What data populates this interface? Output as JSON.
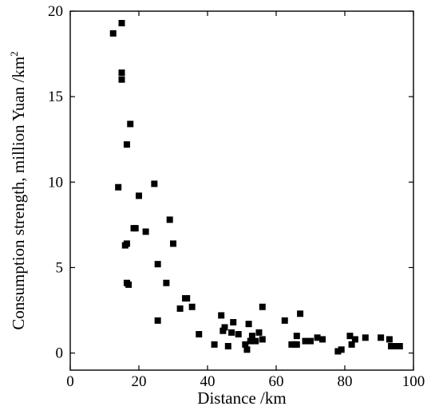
{
  "chart_data": {
    "type": "scatter",
    "xlabel": "Distance /km",
    "ylabel": "Consumption strength, million Yuan /km",
    "ylabel_superscript": "2",
    "xlim": [
      0,
      100
    ],
    "ylim": [
      -1,
      20
    ],
    "x_ticks": [
      0,
      20,
      40,
      60,
      80,
      100
    ],
    "y_ticks": [
      0,
      5,
      10,
      15,
      20
    ],
    "grid": false,
    "legend": "none",
    "marker": "square",
    "marker_color": "#000000",
    "points": [
      [
        12.5,
        18.7
      ],
      [
        15.0,
        19.3
      ],
      [
        15.0,
        16.4
      ],
      [
        15.0,
        16.0
      ],
      [
        17.5,
        13.4
      ],
      [
        16.5,
        12.2
      ],
      [
        14.0,
        9.7
      ],
      [
        24.5,
        9.9
      ],
      [
        20.0,
        9.2
      ],
      [
        29.0,
        7.8
      ],
      [
        18.5,
        7.3
      ],
      [
        19.0,
        7.3
      ],
      [
        22.0,
        7.1
      ],
      [
        30.0,
        6.4
      ],
      [
        16.5,
        6.4
      ],
      [
        16.0,
        6.3
      ],
      [
        25.5,
        5.2
      ],
      [
        28.0,
        4.1
      ],
      [
        16.5,
        4.1
      ],
      [
        17.0,
        4.0
      ],
      [
        33.5,
        3.2
      ],
      [
        34.0,
        3.2
      ],
      [
        35.5,
        2.7
      ],
      [
        32.0,
        2.6
      ],
      [
        56.0,
        2.7
      ],
      [
        67.0,
        2.3
      ],
      [
        44.0,
        2.2
      ],
      [
        62.5,
        1.9
      ],
      [
        25.5,
        1.9
      ],
      [
        47.5,
        1.8
      ],
      [
        52.0,
        1.7
      ],
      [
        45.0,
        1.5
      ],
      [
        44.5,
        1.3
      ],
      [
        55.0,
        1.2
      ],
      [
        47.0,
        1.2
      ],
      [
        49.0,
        1.1
      ],
      [
        37.5,
        1.1
      ],
      [
        53.0,
        1.0
      ],
      [
        66.0,
        1.0
      ],
      [
        81.5,
        1.0
      ],
      [
        86.0,
        0.9
      ],
      [
        90.5,
        0.9
      ],
      [
        72.0,
        0.9
      ],
      [
        73.5,
        0.8
      ],
      [
        56.0,
        0.8
      ],
      [
        68.5,
        0.7
      ],
      [
        70.0,
        0.7
      ],
      [
        52.5,
        0.7
      ],
      [
        54.0,
        0.7
      ],
      [
        93.0,
        0.8
      ],
      [
        83.0,
        0.8
      ],
      [
        42.0,
        0.5
      ],
      [
        46.0,
        0.4
      ],
      [
        51.0,
        0.5
      ],
      [
        64.5,
        0.5
      ],
      [
        65.5,
        0.5
      ],
      [
        66.0,
        0.5
      ],
      [
        82.0,
        0.5
      ],
      [
        93.5,
        0.4
      ],
      [
        95.0,
        0.4
      ],
      [
        96.0,
        0.4
      ],
      [
        79.0,
        0.2
      ],
      [
        78.0,
        0.1
      ],
      [
        51.5,
        0.2
      ]
    ]
  }
}
